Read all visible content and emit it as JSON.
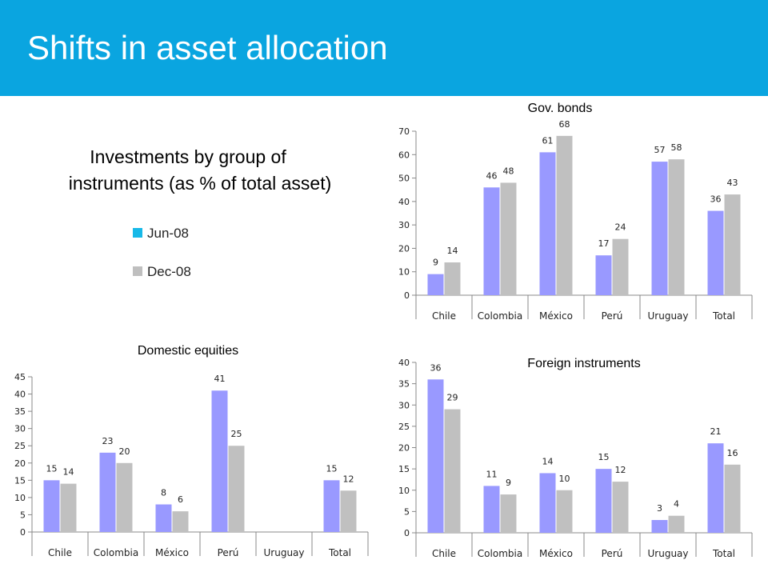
{
  "header": {
    "title": "Shifts in asset allocation"
  },
  "subtitle": {
    "line1": "Investments by group of",
    "line2": "instruments (as % of total asset)"
  },
  "legend": {
    "items": [
      {
        "label": "Jun-08",
        "color": "#17b9e8"
      },
      {
        "label": "Dec-08",
        "color": "#bfbfbf"
      }
    ]
  },
  "colors": {
    "jun": "#9999ff",
    "dec": "#c0c0c0",
    "header": "#0aa5e0"
  },
  "chart_data": [
    {
      "type": "bar",
      "title": "Gov. bonds",
      "categories": [
        "Chile",
        "Colombia",
        "México",
        "Perú",
        "Uruguay",
        "Total"
      ],
      "series": [
        {
          "values": [
            9,
            46,
            61,
            17,
            57,
            36
          ]
        },
        {
          "values": [
            14,
            48,
            68,
            24,
            58,
            43
          ]
        }
      ],
      "ylim": [
        0,
        70
      ],
      "yticks": [
        0,
        10,
        20,
        30,
        40,
        50,
        60,
        70
      ],
      "grid": false
    },
    {
      "type": "bar",
      "title": "Domestic equities",
      "categories": [
        "Chile",
        "Colombia",
        "México",
        "Perú",
        "Uruguay",
        "Total"
      ],
      "series": [
        {
          "values": [
            15,
            23,
            8,
            41,
            null,
            15
          ]
        },
        {
          "values": [
            14,
            20,
            6,
            25,
            null,
            12
          ]
        }
      ],
      "ylim": [
        0,
        45
      ],
      "yticks": [
        0,
        5,
        10,
        15,
        20,
        25,
        30,
        35,
        40,
        45
      ],
      "grid": false
    },
    {
      "type": "bar",
      "title": "Foreign instruments",
      "categories": [
        "Chile",
        "Colombia",
        "México",
        "Perú",
        "Uruguay",
        "Total"
      ],
      "series": [
        {
          "values": [
            36,
            11,
            14,
            15,
            3,
            21
          ]
        },
        {
          "values": [
            29,
            9,
            10,
            12,
            4,
            16
          ]
        }
      ],
      "ylim": [
        0,
        40
      ],
      "yticks": [
        0,
        5,
        10,
        15,
        20,
        25,
        30,
        35,
        40
      ],
      "grid": false
    }
  ]
}
